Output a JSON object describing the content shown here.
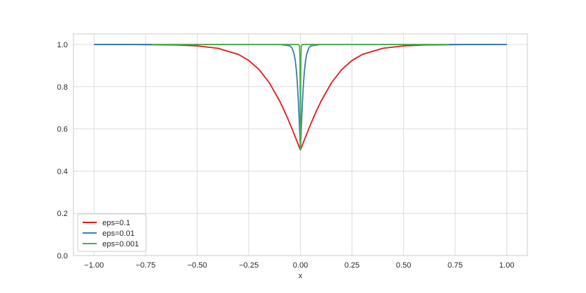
{
  "chart_data": {
    "type": "line",
    "title": "",
    "xlabel": "x",
    "ylabel": "",
    "xlim": [
      -1.1,
      1.1
    ],
    "ylim": [
      0.0,
      1.05
    ],
    "grid": true,
    "legend_position": "lower-left",
    "xticks": [
      -1.0,
      -0.75,
      -0.5,
      -0.25,
      0.0,
      0.25,
      0.5,
      0.75,
      1.0
    ],
    "xtick_labels": [
      "−1.00",
      "−0.75",
      "−0.50",
      "−0.25",
      "0.00",
      "0.25",
      "0.50",
      "0.75",
      "1.00"
    ],
    "yticks": [
      0.0,
      0.2,
      0.4,
      0.6,
      0.8,
      1.0
    ],
    "ytick_labels": [
      "0.0",
      "0.2",
      "0.4",
      "0.6",
      "0.8",
      "1.0"
    ],
    "series": [
      {
        "name": "eps=0.1",
        "color": "#e41a1c",
        "x": [
          -1.0,
          -0.8,
          -0.6,
          -0.5,
          -0.4,
          -0.3,
          -0.25,
          -0.2,
          -0.15,
          -0.1,
          -0.08,
          -0.06,
          -0.05,
          -0.04,
          -0.03,
          -0.02,
          -0.01,
          -0.005,
          0.0,
          0.005,
          0.01,
          0.02,
          0.03,
          0.04,
          0.05,
          0.06,
          0.08,
          0.1,
          0.15,
          0.2,
          0.25,
          0.3,
          0.4,
          0.5,
          0.6,
          0.8,
          1.0
        ],
        "y": [
          1.0,
          0.9997,
          0.9975,
          0.9933,
          0.982,
          0.9526,
          0.924,
          0.8808,
          0.8176,
          0.7311,
          0.69,
          0.6457,
          0.6225,
          0.5987,
          0.5744,
          0.5498,
          0.525,
          0.5125,
          0.5,
          0.5125,
          0.525,
          0.5498,
          0.5744,
          0.5987,
          0.6225,
          0.6457,
          0.69,
          0.7311,
          0.8176,
          0.8808,
          0.924,
          0.9526,
          0.982,
          0.9933,
          0.9975,
          0.9997,
          1.0
        ]
      },
      {
        "name": "eps=0.01",
        "color": "#377eb8",
        "x": [
          -1.0,
          -0.1,
          -0.05,
          -0.04,
          -0.03,
          -0.025,
          -0.02,
          -0.015,
          -0.01,
          -0.008,
          -0.006,
          -0.004,
          -0.002,
          0.0,
          0.002,
          0.004,
          0.006,
          0.008,
          0.01,
          0.015,
          0.02,
          0.025,
          0.03,
          0.04,
          0.05,
          0.1,
          1.0
        ],
        "y": [
          1.0,
          1.0,
          0.9933,
          0.982,
          0.9526,
          0.924,
          0.8808,
          0.8176,
          0.7311,
          0.69,
          0.6457,
          0.5987,
          0.5498,
          0.5,
          0.5498,
          0.5987,
          0.6457,
          0.69,
          0.7311,
          0.8176,
          0.8808,
          0.924,
          0.9526,
          0.982,
          0.9933,
          1.0,
          1.0
        ]
      },
      {
        "name": "eps=0.001",
        "color": "#4daf4a",
        "x": [
          -0.72,
          -0.01,
          -0.005,
          -0.004,
          -0.003,
          -0.002,
          -0.001,
          -0.0005,
          0.0,
          0.0005,
          0.001,
          0.002,
          0.003,
          0.004,
          0.005,
          0.01,
          0.72
        ],
        "y": [
          1.0,
          1.0,
          0.9933,
          0.982,
          0.9526,
          0.8808,
          0.7311,
          0.6225,
          0.5,
          0.6225,
          0.7311,
          0.8808,
          0.9526,
          0.982,
          0.9933,
          1.0,
          1.0
        ]
      }
    ]
  }
}
